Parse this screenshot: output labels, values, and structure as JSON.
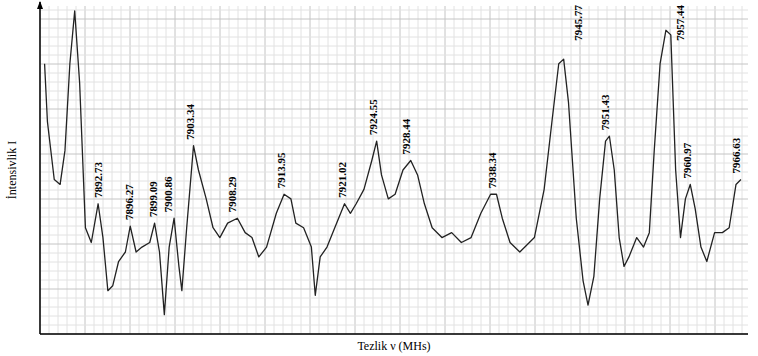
{
  "chart_data": {
    "type": "line",
    "x_label": "Tezlik ν (MHs)",
    "y_label": "İntensivlik I",
    "color": "#222222",
    "grid": true,
    "tick_labels": false,
    "xlim": [
      7886,
      7968
    ],
    "ylim": [
      0,
      100
    ],
    "xticks": [],
    "yticks": [],
    "x": [
      7886.53,
      7886.86,
      7887.65,
      7888.33,
      7888.89,
      7889.46,
      7890.02,
      7890.59,
      7891.26,
      7891.94,
      7892.73,
      7893.29,
      7893.86,
      7894.42,
      7895.1,
      7895.89,
      7896.45,
      7897.13,
      7897.81,
      7898.71,
      7899.27,
      7899.84,
      7900.4,
      7900.96,
      7901.53,
      7902.09,
      7902.43,
      7902.99,
      7903.78,
      7904.35,
      7905.25,
      7906.04,
      7906.83,
      7907.73,
      7908.86,
      7909.76,
      7910.55,
      7911.34,
      7912.24,
      7913.37,
      7914.27,
      7915.06,
      7915.63,
      7916.53,
      7917.43,
      7917.88,
      7918.45,
      7919.24,
      7920.14,
      7921.27,
      7921.95,
      7922.62,
      7923.52,
      7924.43,
      7924.99,
      7925.55,
      7926.34,
      7927.13,
      7928.04,
      7928.94,
      7929.73,
      7930.52,
      7931.42,
      7932.55,
      7933.68,
      7934.8,
      7935.93,
      7937.06,
      7938.19,
      7938.87,
      7939.54,
      7940.44,
      7941.57,
      7943.26,
      7944.39,
      7945.29,
      7946.08,
      7946.65,
      7947.21,
      7948.11,
      7948.9,
      7949.47,
      7950.15,
      7950.82,
      7951.5,
      7951.95,
      7952.51,
      7953.08,
      7953.64,
      7954.21,
      7955.11,
      7955.9,
      7956.57,
      7957.14,
      7957.82,
      7958.49,
      7959.06,
      7959.62,
      7960.18,
      7960.75,
      7961.31,
      7961.88,
      7962.55,
      7963.23,
      7964.13,
      7965.03,
      7965.82,
      7966.61,
      7967.18
    ],
    "values": [
      82.4,
      64.7,
      47.1,
      45.6,
      55.9,
      82.4,
      98.5,
      76.5,
      32.4,
      27.9,
      39.7,
      29.4,
      13.2,
      14.7,
      22.1,
      25.0,
      32.9,
      25.0,
      26.5,
      27.9,
      33.8,
      25.0,
      5.9,
      26.5,
      35.3,
      20.6,
      13.2,
      32.4,
      57.4,
      50.0,
      41.2,
      32.4,
      29.4,
      33.8,
      35.3,
      30.9,
      29.4,
      23.5,
      26.5,
      36.8,
      42.6,
      41.2,
      33.8,
      32.4,
      26.5,
      11.8,
      23.5,
      26.5,
      32.4,
      39.7,
      36.8,
      39.7,
      44.1,
      52.9,
      58.8,
      48.5,
      41.2,
      42.6,
      50.0,
      52.9,
      48.5,
      39.7,
      32.4,
      29.4,
      30.9,
      27.9,
      29.4,
      36.8,
      42.6,
      42.6,
      35.3,
      27.9,
      25.0,
      29.4,
      44.1,
      64.7,
      82.4,
      83.8,
      70.6,
      35.3,
      16.2,
      8.8,
      17.6,
      41.2,
      58.8,
      60.3,
      50.0,
      29.4,
      20.6,
      23.5,
      29.4,
      26.5,
      30.9,
      55.9,
      82.4,
      92.6,
      91.2,
      50.0,
      29.4,
      41.2,
      45.6,
      38.2,
      26.5,
      22.1,
      30.9,
      30.9,
      32.4,
      45.6,
      47.1
    ],
    "annotations": [
      {
        "text": "7892.73",
        "x": 7892.73
      },
      {
        "text": "7896.27",
        "x": 7896.27
      },
      {
        "text": "7899.09",
        "x": 7899.09
      },
      {
        "text": "7900.86",
        "x": 7900.86
      },
      {
        "text": "7903.34",
        "x": 7903.34
      },
      {
        "text": "7908.29",
        "x": 7908.29
      },
      {
        "text": "7913.95",
        "x": 7913.95
      },
      {
        "text": "7921.02",
        "x": 7921.02
      },
      {
        "text": "7924.55",
        "x": 7924.55
      },
      {
        "text": "7928.44",
        "x": 7928.44
      },
      {
        "text": "7938.34",
        "x": 7938.34
      },
      {
        "text": "7945.77",
        "x": 7945.77
      },
      {
        "text": "7951.43",
        "x": 7951.43
      },
      {
        "text": "7957.44",
        "x": 7957.44
      },
      {
        "text": "7960.97",
        "x": 7960.97
      },
      {
        "text": "7966.63",
        "x": 7966.63
      }
    ]
  }
}
